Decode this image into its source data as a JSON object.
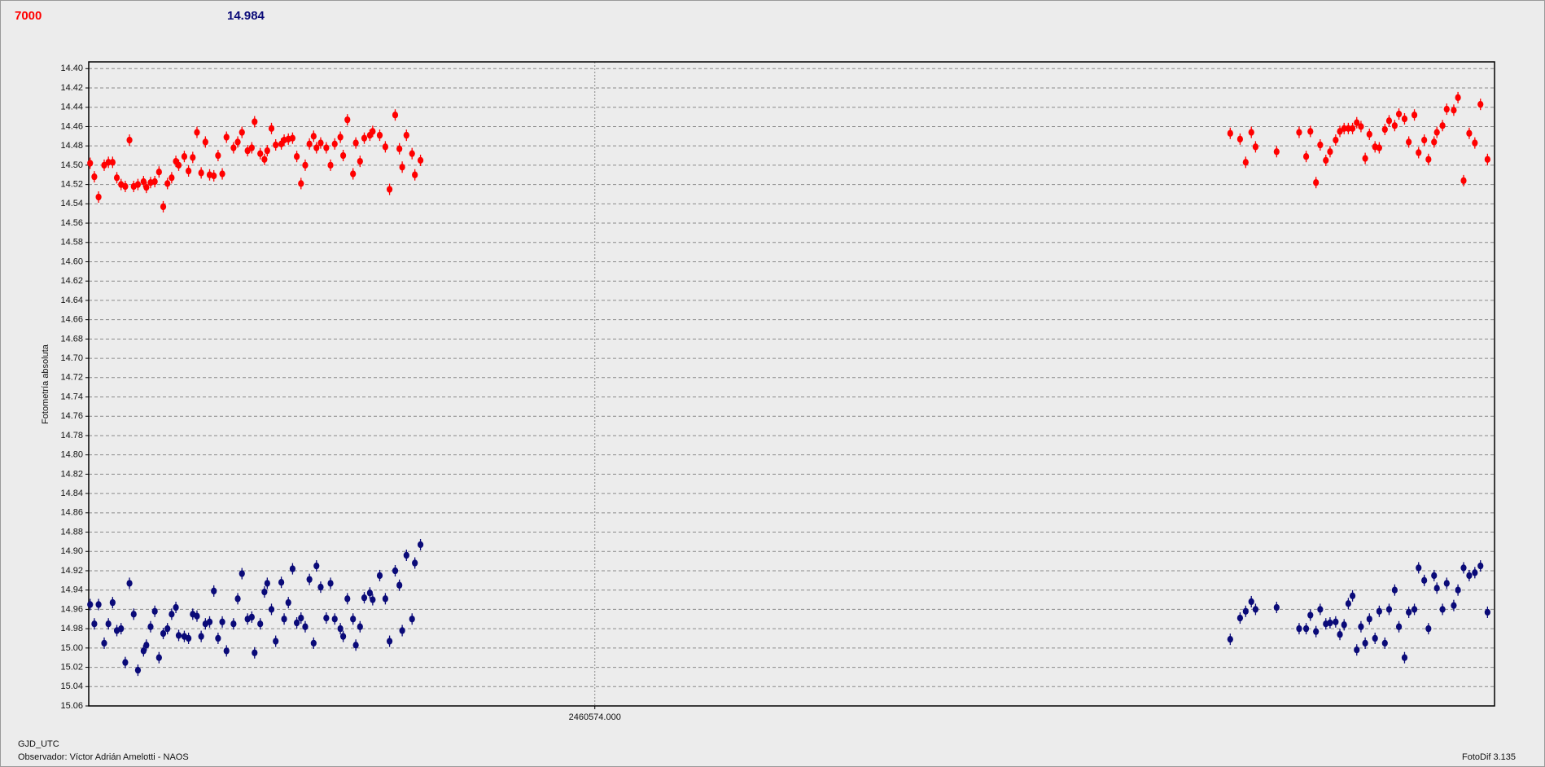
{
  "chart_data": {
    "type": "scatter",
    "annotations": [
      "7000",
      "14.984"
    ],
    "x_label": "GJD_UTC",
    "y_label": "Fotometría absoluta",
    "footer": [
      "Observador: Víctor Adrián Amelotti - NAOS",
      "FotoDif 3.135"
    ],
    "xlim": [
      2460573.64,
      2460574.64
    ],
    "xticks": [
      {
        "value": 2460574,
        "label": "2460574.000"
      }
    ],
    "ylim": [
      14.393,
      15.06
    ],
    "invert_y": true,
    "grid": true,
    "yticks": [
      {
        "value": 14.4,
        "label": "14.40"
      },
      14.42,
      14.44,
      14.46,
      14.48,
      {
        "value": 14.5,
        "label": "14.50"
      },
      14.52,
      14.54,
      14.56,
      14.58,
      {
        "value": 14.6,
        "label": "14.60"
      },
      14.62,
      14.64,
      14.66,
      14.68,
      {
        "value": 14.7,
        "label": "14.70"
      },
      14.72,
      14.74,
      14.76,
      14.78,
      {
        "value": 14.8,
        "label": "14.80"
      },
      14.82,
      14.84,
      14.86,
      14.88,
      {
        "value": 14.9,
        "label": "14.90"
      },
      14.92,
      14.94,
      14.96,
      14.98,
      {
        "value": 15.0,
        "label": "15.00"
      },
      15.02,
      15.04,
      15.06
    ],
    "x": [
      2460573.641,
      2460573.644,
      2460573.647,
      2460573.651,
      2460573.654,
      2460573.657,
      2460573.66,
      2460573.663,
      2460573.666,
      2460573.669,
      2460573.672,
      2460573.675,
      2460573.679,
      2460573.681,
      2460573.684,
      2460573.687,
      2460573.69,
      2460573.693,
      2460573.696,
      2460573.699,
      2460573.702,
      2460573.704,
      2460573.708,
      2460573.711,
      2460573.714,
      2460573.717,
      2460573.72,
      2460573.723,
      2460573.726,
      2460573.729,
      2460573.732,
      2460573.735,
      2460573.738,
      2460573.743,
      2460573.746,
      2460573.749,
      2460573.753,
      2460573.756,
      2460573.758,
      2460573.762,
      2460573.765,
      2460573.767,
      2460573.77,
      2460573.773,
      2460573.777,
      2460573.779,
      2460573.782,
      2460573.785,
      2460573.788,
      2460573.791,
      2460573.794,
      2460573.797,
      2460573.8,
      2460573.802,
      2460573.805,
      2460573.809,
      2460573.812,
      2460573.815,
      2460573.819,
      2460573.821,
      2460573.824,
      2460573.828,
      2460573.83,
      2460573.833,
      2460573.836,
      2460573.84,
      2460573.842,
      2460573.847,
      2460573.851,
      2460573.854,
      2460573.858,
      2460573.861,
      2460573.863,
      2460573.866,
      2460573.87,
      2460573.872,
      2460573.876,
      2460574.452,
      2460574.459,
      2460574.463,
      2460574.467,
      2460574.47,
      2460574.485,
      2460574.501,
      2460574.506,
      2460574.509,
      2460574.513,
      2460574.516,
      2460574.52,
      2460574.523,
      2460574.527,
      2460574.53,
      2460574.533,
      2460574.536,
      2460574.539,
      2460574.542,
      2460574.545,
      2460574.548,
      2460574.551,
      2460574.555,
      2460574.558,
      2460574.562,
      2460574.565,
      2460574.569,
      2460574.572,
      2460574.576,
      2460574.579,
      2460574.583,
      2460574.586,
      2460574.59,
      2460574.593,
      2460574.597,
      2460574.599,
      2460574.603,
      2460574.606,
      2460574.611,
      2460574.614,
      2460574.618,
      2460574.622,
      2460574.626,
      2460574.63,
      2460574.635
    ],
    "series": [
      {
        "color": "#ff0000",
        "values": [
          14.498,
          14.512,
          14.533,
          14.5,
          14.497,
          14.497,
          14.513,
          14.52,
          14.522,
          14.474,
          14.522,
          14.52,
          14.517,
          14.523,
          14.518,
          14.517,
          14.507,
          14.543,
          14.519,
          14.513,
          14.496,
          14.5,
          14.491,
          14.506,
          14.492,
          14.466,
          14.508,
          14.476,
          14.51,
          14.511,
          14.49,
          14.509,
          14.471,
          14.482,
          14.476,
          14.466,
          14.485,
          14.482,
          14.455,
          14.488,
          14.494,
          14.485,
          14.462,
          14.479,
          14.478,
          14.474,
          14.473,
          14.472,
          14.491,
          14.519,
          14.5,
          14.478,
          14.47,
          14.482,
          14.477,
          14.482,
          14.5,
          14.478,
          14.471,
          14.49,
          14.453,
          14.509,
          14.477,
          14.496,
          14.472,
          14.469,
          14.465,
          14.469,
          14.481,
          14.525,
          14.448,
          14.483,
          14.502,
          14.469,
          14.488,
          14.51,
          14.495,
          14.467,
          14.473,
          14.497,
          14.466,
          14.481,
          14.486,
          14.466,
          14.491,
          14.465,
          14.518,
          14.479,
          14.495,
          14.486,
          14.474,
          14.465,
          14.462,
          14.462,
          14.462,
          14.456,
          14.46,
          14.493,
          14.468,
          14.481,
          14.482,
          14.463,
          14.454,
          14.459,
          14.447,
          14.452,
          14.476,
          14.448,
          14.487,
          14.474,
          14.494,
          14.476,
          14.466,
          14.459,
          14.442,
          14.443,
          14.43,
          14.516,
          14.467,
          14.477,
          14.437,
          14.494
        ]
      },
      {
        "color": "#0a0a78",
        "values": [
          14.955,
          14.975,
          14.955,
          14.995,
          14.975,
          14.953,
          14.982,
          14.98,
          15.015,
          14.933,
          14.965,
          15.023,
          15.003,
          14.997,
          14.978,
          14.962,
          15.01,
          14.985,
          14.98,
          14.965,
          14.958,
          14.987,
          14.988,
          14.99,
          14.965,
          14.967,
          14.988,
          14.975,
          14.973,
          14.941,
          14.99,
          14.973,
          15.003,
          14.975,
          14.949,
          14.923,
          14.97,
          14.968,
          15.005,
          14.975,
          14.942,
          14.933,
          14.96,
          14.993,
          14.932,
          14.97,
          14.953,
          14.918,
          14.974,
          14.969,
          14.978,
          14.929,
          14.995,
          14.915,
          14.937,
          14.969,
          14.933,
          14.97,
          14.98,
          14.988,
          14.949,
          14.97,
          14.997,
          14.978,
          14.948,
          14.943,
          14.95,
          14.925,
          14.949,
          14.993,
          14.92,
          14.935,
          14.982,
          14.904,
          14.97,
          14.912,
          14.893,
          14.991,
          14.969,
          14.962,
          14.952,
          14.96,
          14.958,
          14.98,
          14.98,
          14.966,
          14.983,
          14.96,
          14.975,
          14.974,
          14.973,
          14.986,
          14.976,
          14.954,
          14.946,
          15.002,
          14.978,
          14.995,
          14.97,
          14.99,
          14.962,
          14.995,
          14.96,
          14.94,
          14.978,
          15.01,
          14.963,
          14.96,
          14.917,
          14.93,
          14.98,
          14.925,
          14.938,
          14.96,
          14.933,
          14.956,
          14.94,
          14.917,
          14.925,
          14.922,
          14.915,
          14.963
        ]
      }
    ]
  }
}
